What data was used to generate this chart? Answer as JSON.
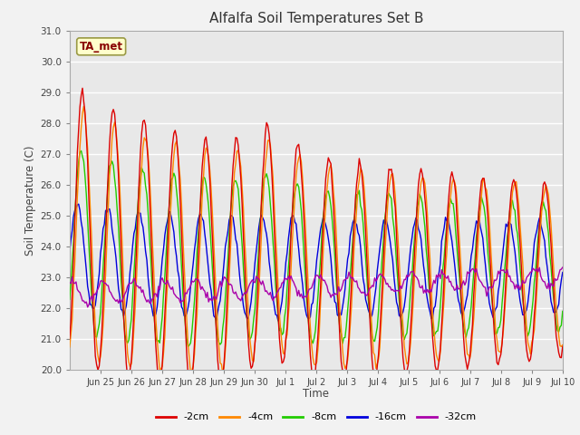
{
  "title": "Alfalfa Soil Temperatures Set B",
  "xlabel": "Time",
  "ylabel": "Soil Temperature (C)",
  "ylim": [
    20.0,
    31.0
  ],
  "yticks": [
    20.0,
    21.0,
    22.0,
    23.0,
    24.0,
    25.0,
    26.0,
    27.0,
    28.0,
    29.0,
    30.0,
    31.0
  ],
  "colors": {
    "-2cm": "#dd0000",
    "-4cm": "#ff8800",
    "-8cm": "#22cc00",
    "-16cm": "#0000dd",
    "-32cm": "#aa00aa"
  },
  "legend_label": "TA_met",
  "tick_labels": [
    "Jun 25",
    "Jun 26",
    "Jun 27",
    "Jun 28",
    "Jun 29",
    "Jun 30",
    "Jul 1",
    "Jul 2",
    "Jul 3",
    "Jul 4",
    "Jul 5",
    "Jul 6",
    "Jul 7",
    "Jul 8",
    "Jul 9",
    "Jul 10"
  ],
  "fig_bg": "#f2f2f2",
  "axes_bg": "#e8e8e8"
}
